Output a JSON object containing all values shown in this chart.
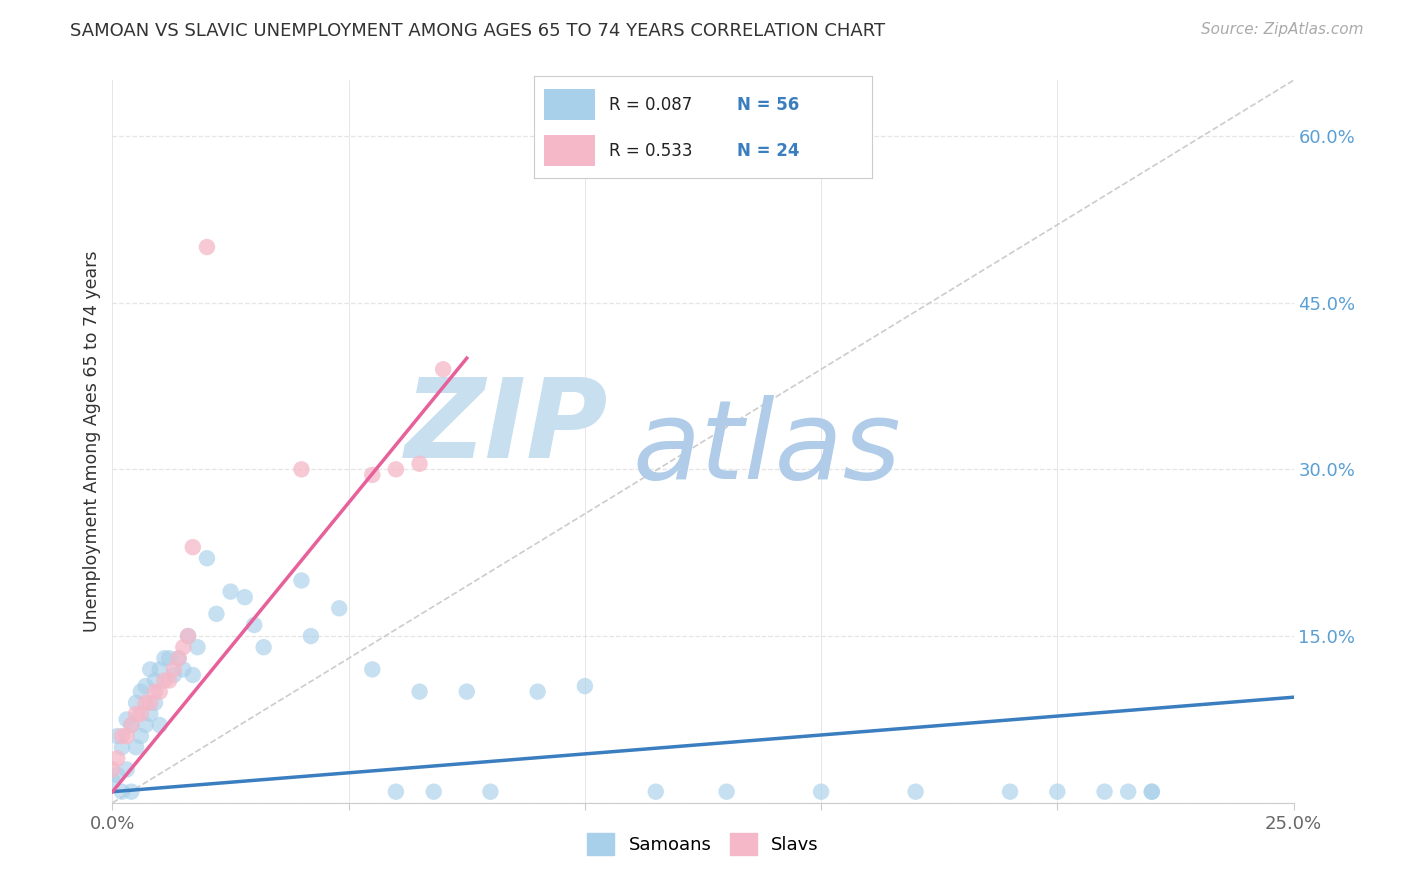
{
  "title": "SAMOAN VS SLAVIC UNEMPLOYMENT AMONG AGES 65 TO 74 YEARS CORRELATION CHART",
  "source": "Source: ZipAtlas.com",
  "ylabel": "Unemployment Among Ages 65 to 74 years",
  "x_min": 0.0,
  "x_max": 0.25,
  "y_min": 0.0,
  "y_max": 0.65,
  "x_ticks": [
    0.0,
    0.05,
    0.1,
    0.15,
    0.2,
    0.25
  ],
  "y_ticks_right": [
    0.0,
    0.15,
    0.3,
    0.45,
    0.6
  ],
  "samoan_color": "#a8d0ea",
  "slavic_color": "#f4b8c8",
  "samoan_R": 0.087,
  "samoan_N": 56,
  "slavic_R": 0.533,
  "slavic_N": 24,
  "trend_blue_color": "#3a7ebf",
  "trend_pink_color": "#e8609a",
  "diag_color": "#cccccc",
  "watermark_ZIP_color": "#c8dff0",
  "watermark_atlas_color": "#b0cce8",
  "background_color": "#ffffff",
  "grid_color": "#e5e5e5",
  "samoan_pts_x": [
    0.0,
    0.001,
    0.001,
    0.002,
    0.002,
    0.003,
    0.003,
    0.004,
    0.004,
    0.005,
    0.005,
    0.006,
    0.006,
    0.007,
    0.007,
    0.008,
    0.008,
    0.009,
    0.009,
    0.01,
    0.01,
    0.011,
    0.012,
    0.013,
    0.014,
    0.015,
    0.016,
    0.017,
    0.018,
    0.02,
    0.022,
    0.025,
    0.028,
    0.03,
    0.032,
    0.04,
    0.042,
    0.048,
    0.055,
    0.06,
    0.065,
    0.068,
    0.075,
    0.08,
    0.09,
    0.1,
    0.115,
    0.13,
    0.15,
    0.17,
    0.19,
    0.2,
    0.21,
    0.22,
    0.215,
    0.22
  ],
  "samoan_pts_y": [
    0.02,
    0.025,
    0.06,
    0.01,
    0.05,
    0.03,
    0.075,
    0.01,
    0.07,
    0.05,
    0.09,
    0.06,
    0.1,
    0.07,
    0.105,
    0.08,
    0.12,
    0.09,
    0.11,
    0.07,
    0.12,
    0.13,
    0.13,
    0.115,
    0.13,
    0.12,
    0.15,
    0.115,
    0.14,
    0.22,
    0.17,
    0.19,
    0.185,
    0.16,
    0.14,
    0.2,
    0.15,
    0.175,
    0.12,
    0.01,
    0.1,
    0.01,
    0.1,
    0.01,
    0.1,
    0.105,
    0.01,
    0.01,
    0.01,
    0.01,
    0.01,
    0.01,
    0.01,
    0.01,
    0.01,
    0.01
  ],
  "slavic_pts_x": [
    0.0,
    0.001,
    0.002,
    0.003,
    0.004,
    0.005,
    0.006,
    0.007,
    0.008,
    0.009,
    0.01,
    0.011,
    0.012,
    0.013,
    0.014,
    0.015,
    0.016,
    0.017,
    0.02,
    0.04,
    0.055,
    0.06,
    0.065,
    0.07
  ],
  "slavic_pts_y": [
    0.03,
    0.04,
    0.06,
    0.06,
    0.07,
    0.08,
    0.08,
    0.09,
    0.09,
    0.1,
    0.1,
    0.11,
    0.11,
    0.12,
    0.13,
    0.14,
    0.15,
    0.23,
    0.5,
    0.3,
    0.295,
    0.3,
    0.305,
    0.39
  ],
  "blue_trend_x": [
    0.0,
    0.25
  ],
  "blue_trend_y": [
    0.01,
    0.095
  ],
  "pink_trend_x": [
    0.0,
    0.075
  ],
  "pink_trend_y": [
    0.01,
    0.4
  ]
}
